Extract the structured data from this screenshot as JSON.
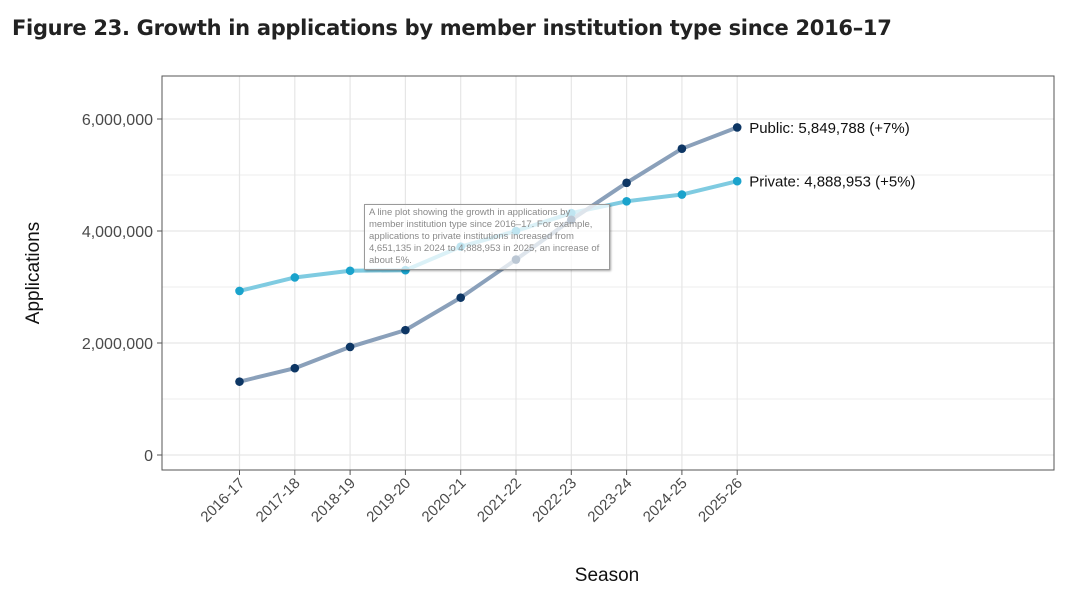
{
  "figure_title": "Figure 23. Growth in applications by member institution type since 2016–17",
  "tooltip_text": "A line plot showing the growth in applications by member institution type since 2016–17. For example, applications to private institutions increased from 4,651,135 in 2024 to 4,888,953 in 2025, an increase of about 5%.",
  "colors": {
    "public_line": "#8aa0ba",
    "public_point": "#0d3664",
    "private_line": "#7fcbe1",
    "private_point": "#1aa3cc",
    "grid": "#e6e6e6",
    "panel_border": "#555555"
  },
  "chart_data": {
    "type": "line",
    "title": "Figure 23. Growth in applications by member institution type since 2016–17",
    "xlabel": "Season",
    "ylabel": "Applications",
    "categories": [
      "2016-17",
      "2017-18",
      "2018-19",
      "2019-20",
      "2020-21",
      "2021-22",
      "2022-23",
      "2023-24",
      "2024-25",
      "2025-26"
    ],
    "ylim": [
      0,
      6000000
    ],
    "yticks": [
      0,
      2000000,
      4000000,
      6000000
    ],
    "ytick_labels": [
      "0",
      "2,000,000",
      "4,000,000",
      "6,000,000"
    ],
    "grid": true,
    "series": [
      {
        "name": "Private",
        "values": [
          2930000,
          3170000,
          3290000,
          3300000,
          3720000,
          4000000,
          4320000,
          4530000,
          4651135,
          4888953
        ],
        "end_label": "Private: 4,888,953 (+5%)"
      },
      {
        "name": "Public",
        "values": [
          1310000,
          1550000,
          1930000,
          2230000,
          2810000,
          3490000,
          4200000,
          4860000,
          5470000,
          5849788
        ],
        "end_label": "Public: 5,849,788 (+7%)"
      }
    ]
  }
}
